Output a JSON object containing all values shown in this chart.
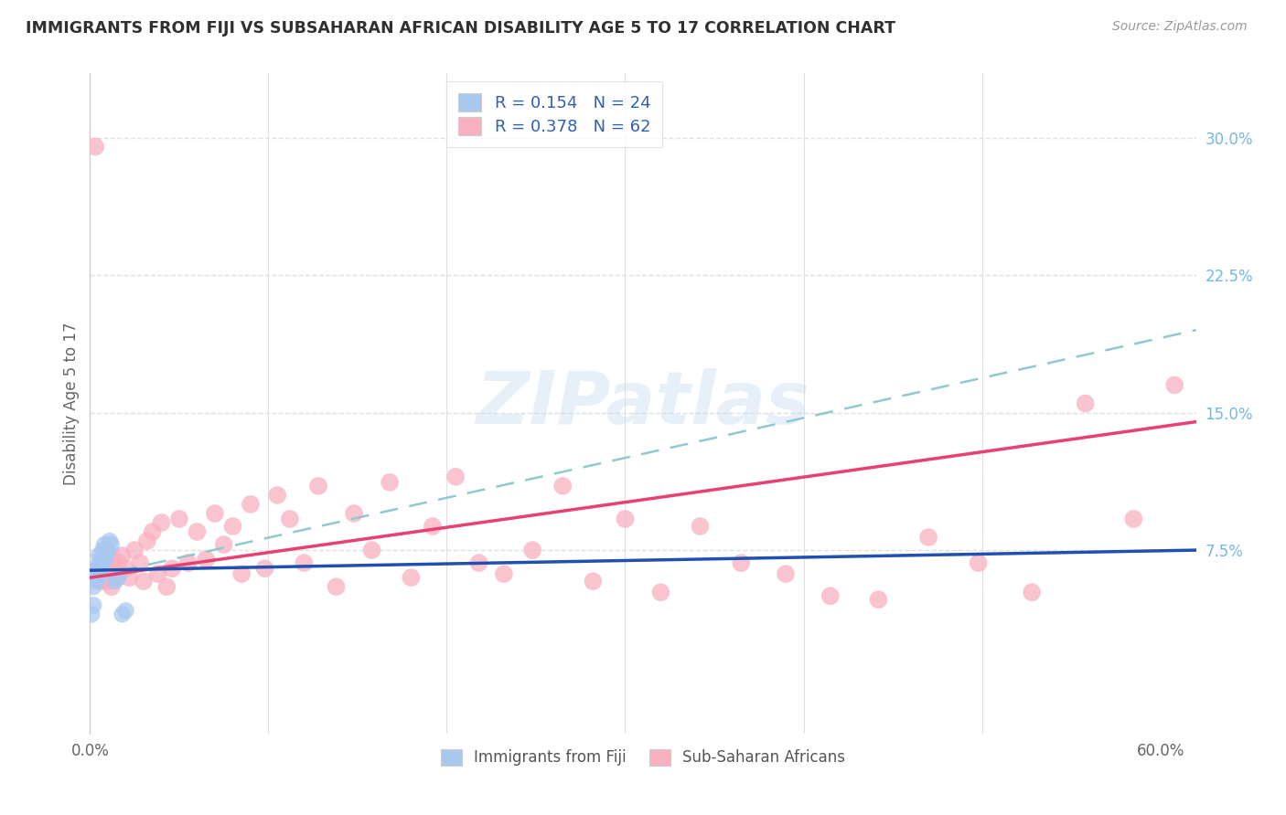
{
  "title": "IMMIGRANTS FROM FIJI VS SUBSAHARAN AFRICAN DISABILITY AGE 5 TO 17 CORRELATION CHART",
  "source": "Source: ZipAtlas.com",
  "ylabel": "Disability Age 5 to 17",
  "xlim": [
    0.0,
    0.62
  ],
  "ylim": [
    -0.025,
    0.335
  ],
  "right_yticks": [
    0.075,
    0.15,
    0.225,
    0.3
  ],
  "right_yticklabels": [
    "7.5%",
    "15.0%",
    "22.5%",
    "30.0%"
  ],
  "fiji_R": "0.154",
  "fiji_N": "24",
  "ssa_R": "0.378",
  "ssa_N": "62",
  "fiji_color": "#a8c8f0",
  "ssa_color": "#f8b0c0",
  "fiji_line_color": "#2050b0",
  "ssa_line_color": "#e84070",
  "dashed_line_color": "#90c8d0",
  "grid_color": "#e0e0e0",
  "title_color": "#303030",
  "right_axis_color": "#70b8e8",
  "legend_color": "#3060b0",
  "fiji_x": [
    0.001,
    0.002,
    0.002,
    0.003,
    0.003,
    0.004,
    0.004,
    0.005,
    0.005,
    0.005,
    0.006,
    0.006,
    0.007,
    0.007,
    0.008,
    0.008,
    0.009,
    0.01,
    0.011,
    0.012,
    0.014,
    0.016,
    0.018,
    0.02
  ],
  "fiji_y": [
    0.04,
    0.045,
    0.055,
    0.058,
    0.06,
    0.062,
    0.065,
    0.06,
    0.068,
    0.072,
    0.065,
    0.07,
    0.068,
    0.075,
    0.07,
    0.078,
    0.072,
    0.075,
    0.08,
    0.078,
    0.058,
    0.06,
    0.04,
    0.042
  ],
  "fiji_line_x0": 0.0,
  "fiji_line_y0": 0.064,
  "fiji_line_x1": 0.62,
  "fiji_line_y1": 0.075,
  "ssa_line_x0": 0.0,
  "ssa_line_y0": 0.06,
  "ssa_line_x1": 0.62,
  "ssa_line_y1": 0.145,
  "dashed_line_x0": 0.0,
  "dashed_line_y0": 0.06,
  "dashed_line_x1": 0.62,
  "dashed_line_y1": 0.195,
  "ssa_x": [
    0.003,
    0.005,
    0.006,
    0.008,
    0.009,
    0.01,
    0.012,
    0.013,
    0.014,
    0.015,
    0.016,
    0.018,
    0.02,
    0.022,
    0.025,
    0.028,
    0.03,
    0.032,
    0.035,
    0.038,
    0.04,
    0.043,
    0.046,
    0.05,
    0.055,
    0.06,
    0.065,
    0.07,
    0.075,
    0.08,
    0.085,
    0.09,
    0.098,
    0.105,
    0.112,
    0.12,
    0.128,
    0.138,
    0.148,
    0.158,
    0.168,
    0.18,
    0.192,
    0.205,
    0.218,
    0.232,
    0.248,
    0.265,
    0.282,
    0.3,
    0.32,
    0.342,
    0.365,
    0.39,
    0.415,
    0.442,
    0.47,
    0.498,
    0.528,
    0.558,
    0.585,
    0.608
  ],
  "ssa_y": [
    0.295,
    0.065,
    0.058,
    0.062,
    0.06,
    0.058,
    0.055,
    0.07,
    0.065,
    0.06,
    0.068,
    0.072,
    0.065,
    0.06,
    0.075,
    0.068,
    0.058,
    0.08,
    0.085,
    0.062,
    0.09,
    0.055,
    0.065,
    0.092,
    0.068,
    0.085,
    0.07,
    0.095,
    0.078,
    0.088,
    0.062,
    0.1,
    0.065,
    0.105,
    0.092,
    0.068,
    0.11,
    0.055,
    0.095,
    0.075,
    0.112,
    0.06,
    0.088,
    0.115,
    0.068,
    0.062,
    0.075,
    0.11,
    0.058,
    0.092,
    0.052,
    0.088,
    0.068,
    0.062,
    0.05,
    0.048,
    0.082,
    0.068,
    0.052,
    0.155,
    0.092,
    0.165
  ]
}
